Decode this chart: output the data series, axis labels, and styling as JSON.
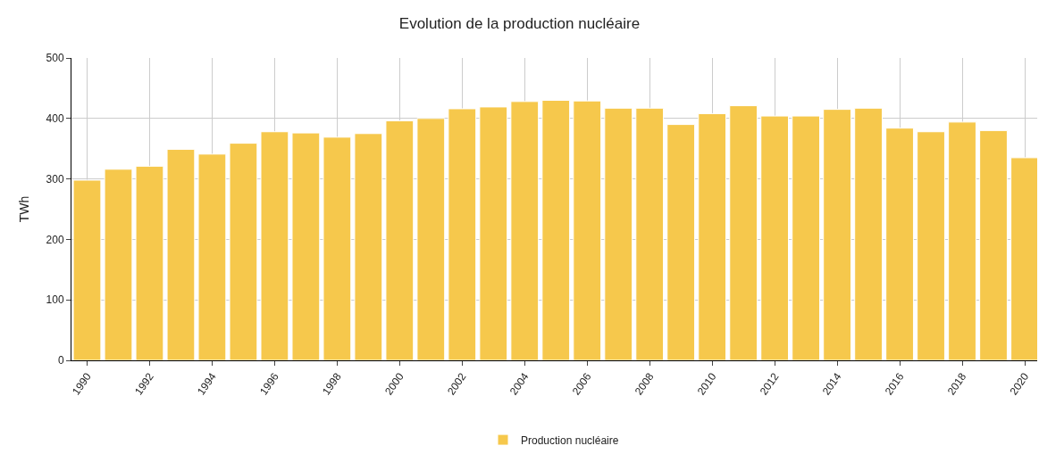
{
  "chart_data": {
    "type": "bar",
    "title": "Evolution de la production nucléaire",
    "ylabel": "TWh",
    "x": [
      1990,
      1991,
      1992,
      1993,
      1994,
      1995,
      1996,
      1997,
      1998,
      1999,
      2000,
      2001,
      2002,
      2003,
      2004,
      2005,
      2006,
      2007,
      2008,
      2009,
      2010,
      2011,
      2012,
      2013,
      2014,
      2015,
      2016,
      2017,
      2018,
      2019,
      2020
    ],
    "series": [
      {
        "name": "Production nucléaire",
        "color": "#f6c84c",
        "values": [
          298,
          316,
          321,
          349,
          341,
          359,
          378,
          376,
          369,
          375,
          396,
          400,
          416,
          419,
          428,
          430,
          429,
          417,
          417,
          390,
          408,
          421,
          404,
          404,
          415,
          417,
          384,
          378,
          394,
          380,
          335
        ]
      }
    ],
    "xlim": [
      1989.5,
      2020.4
    ],
    "xticks": [
      1990,
      1992,
      1994,
      1996,
      1998,
      2000,
      2002,
      2004,
      2006,
      2008,
      2010,
      2012,
      2014,
      2016,
      2018,
      2020
    ],
    "ylim": [
      0,
      500
    ],
    "yticks": [
      0,
      100,
      200,
      300,
      400,
      500
    ],
    "grid": true,
    "legend": "bottom"
  }
}
